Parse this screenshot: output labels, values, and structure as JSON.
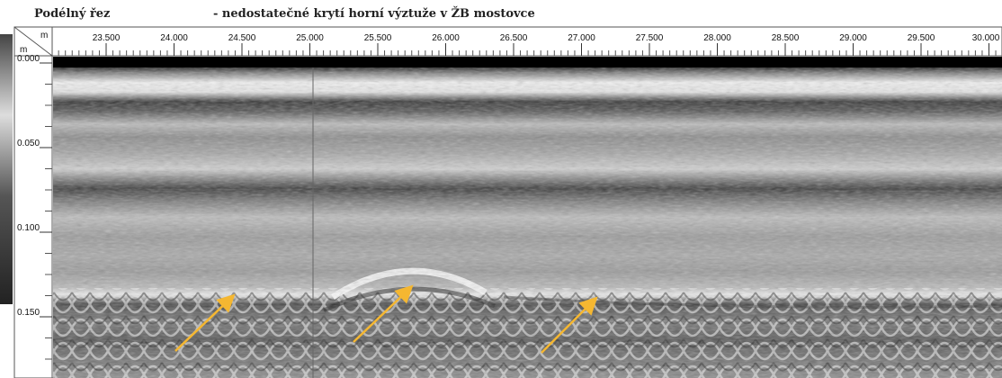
{
  "header": {
    "title": "Podélný řez",
    "subtitle": "- nedostatečné krytí horní výztuže v ŽB mostovce"
  },
  "x_axis": {
    "unit": "m",
    "labels": [
      "23.500",
      "24.000",
      "24.500",
      "25.000",
      "25.500",
      "26.000",
      "26.500",
      "27.000",
      "27.500",
      "28.000",
      "28.500",
      "29.000",
      "29.500",
      "30.000"
    ]
  },
  "y_axis": {
    "unit": "m",
    "labels": [
      "0.000",
      "0.050",
      "0.100",
      "0.150"
    ]
  }
}
